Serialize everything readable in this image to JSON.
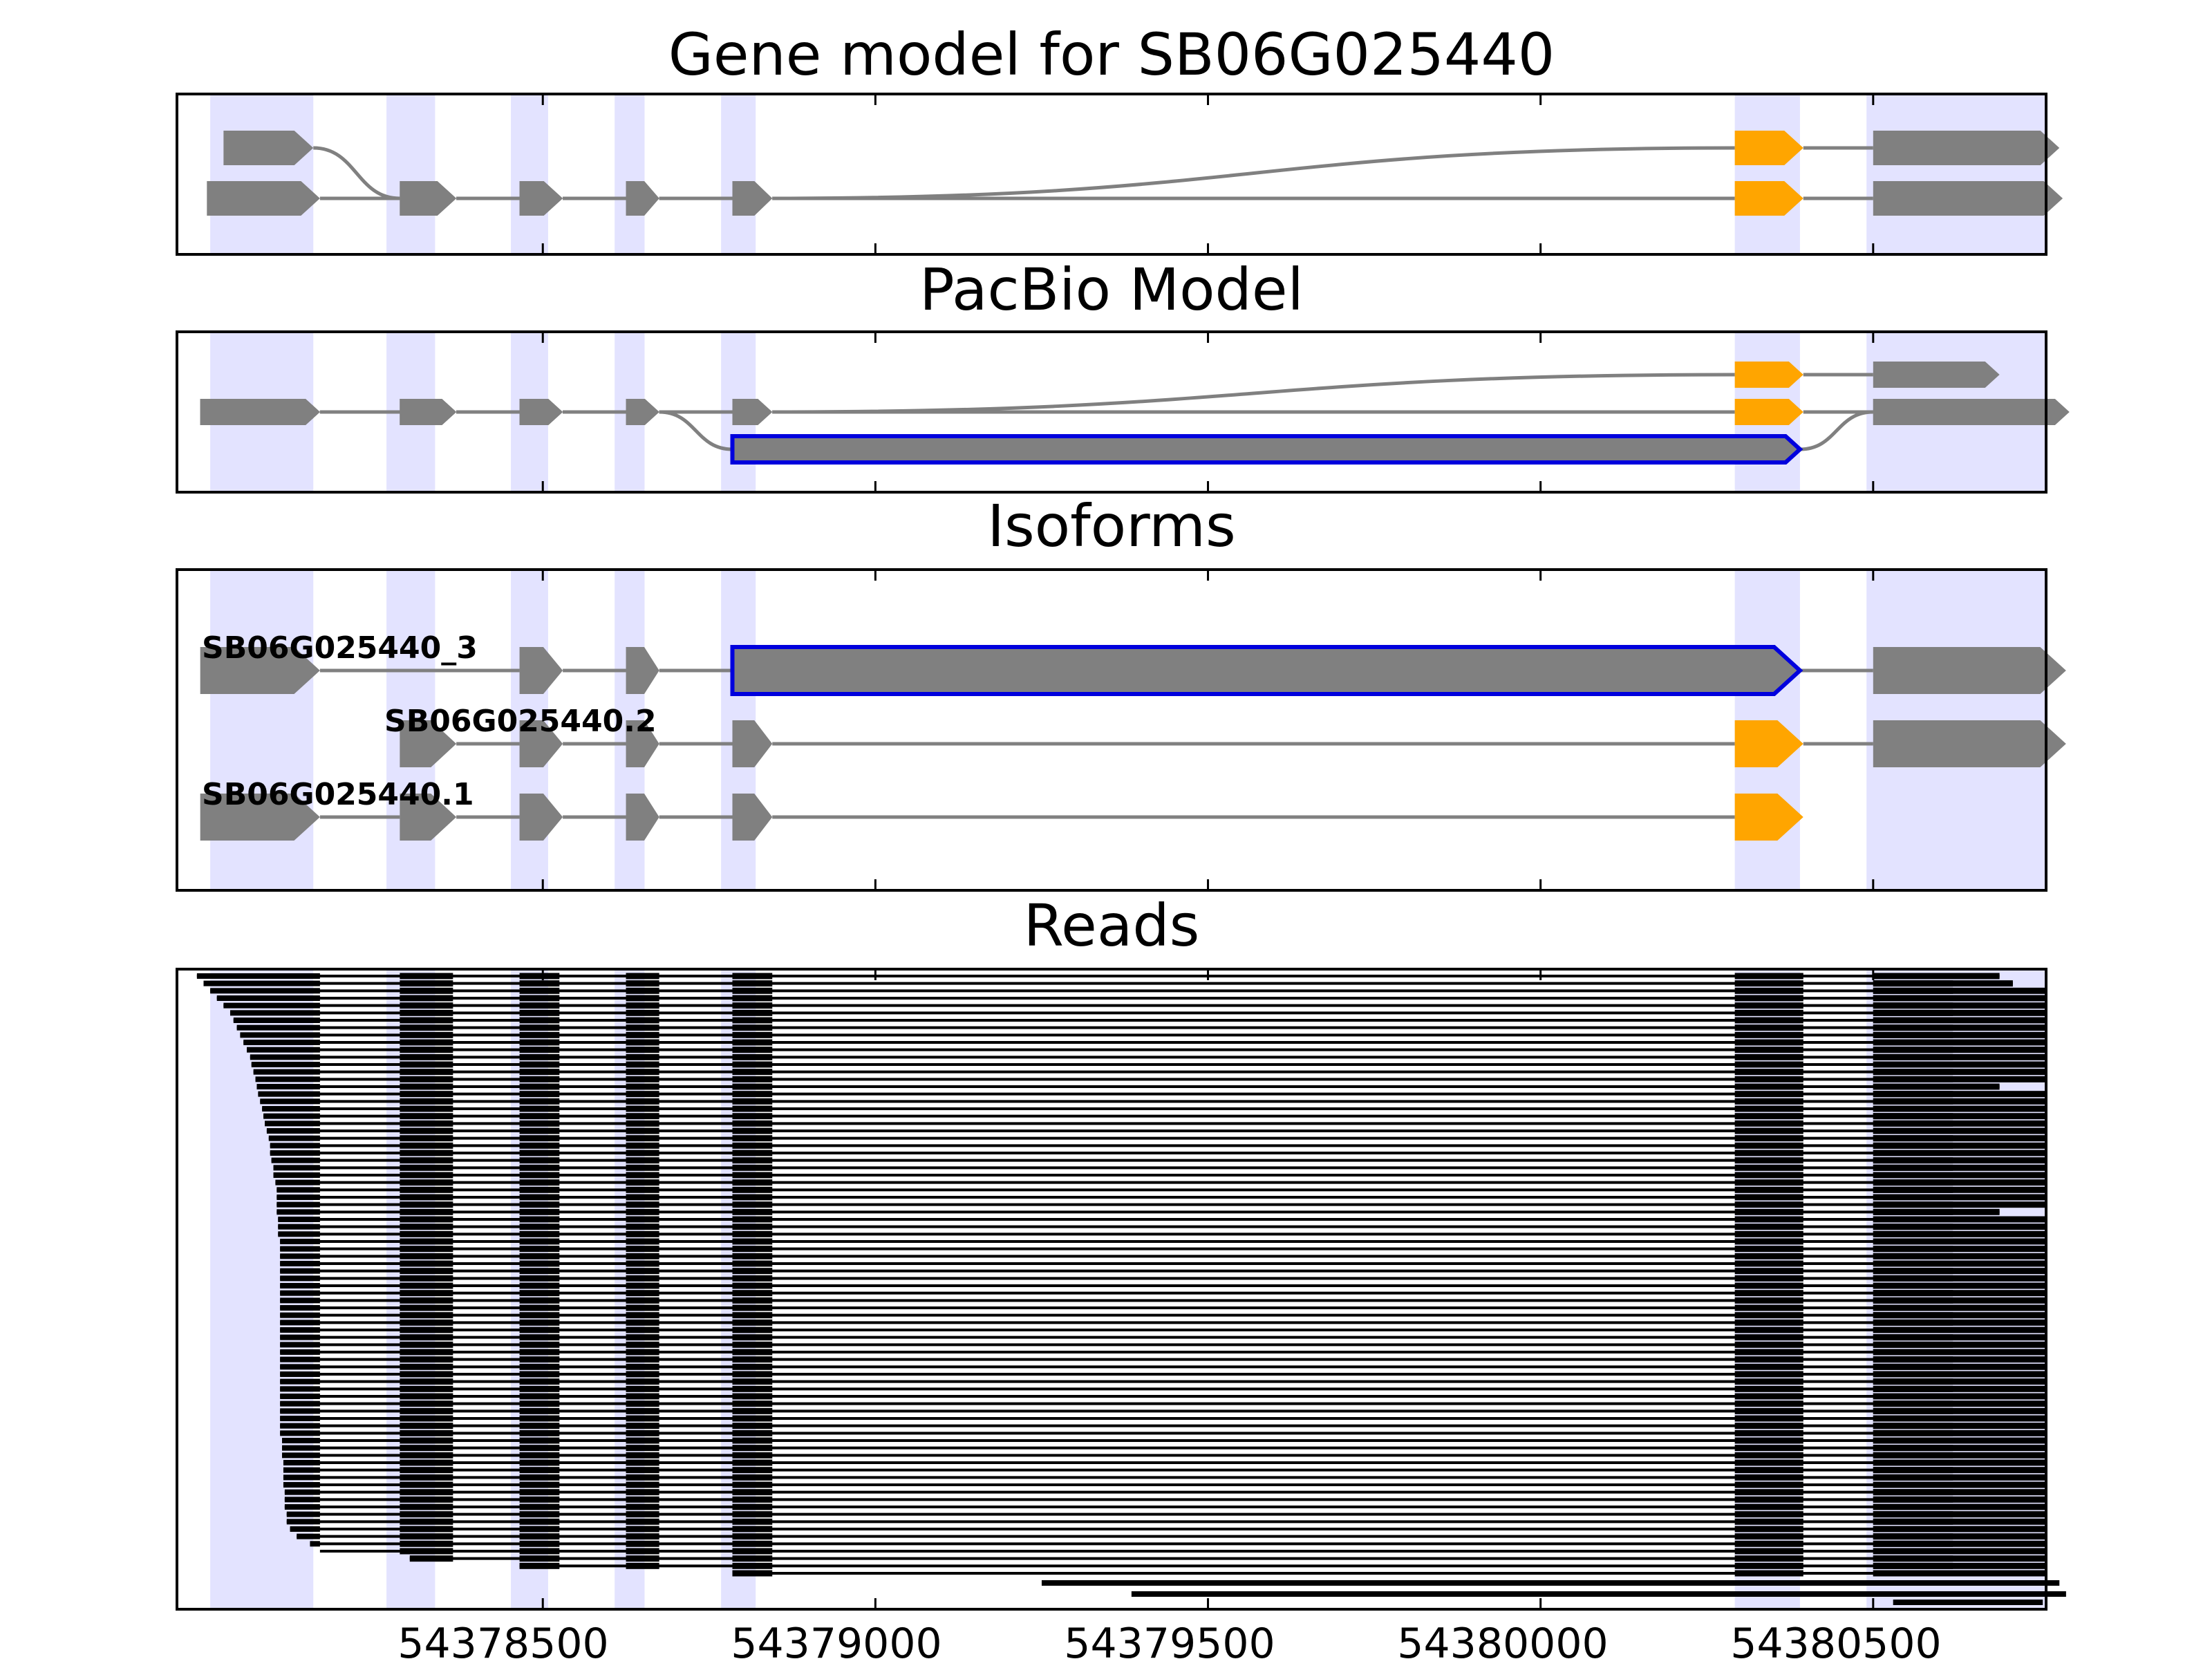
{
  "colors": {
    "exon": "#808080",
    "cds": "#ffa500",
    "novel_outline": "#0000dd",
    "intron": "#808080",
    "highlight": "#e3e3ff",
    "read": "#000000"
  },
  "chart_data": {
    "type": "gene_track",
    "xlim": [
      54377950,
      54380760
    ],
    "x_ticks": [
      54378500,
      54379000,
      54379500,
      54380000,
      54380500
    ],
    "x_tick_labels": [
      "54378500",
      "54379000",
      "54379500",
      "54380000",
      "54380500"
    ],
    "highlight_regions": [
      [
        54378000,
        54378155
      ],
      [
        54378265,
        54378338
      ],
      [
        54378452,
        54378508
      ],
      [
        54378608,
        54378653
      ],
      [
        54378768,
        54378820
      ],
      [
        54380292,
        54380390
      ],
      [
        54380490,
        54380760
      ]
    ],
    "panels": [
      {
        "title": "Gene model for SB06G025440",
        "lanes": 2,
        "transcripts": [
          {
            "exons": [
              [
                54378020,
                54378155,
                0,
                "exon"
              ],
              [
                54378285,
                54378370,
                1,
                "exon"
              ],
              [
                54378465,
                54378530,
                1,
                "exon"
              ],
              [
                54378625,
                54378675,
                1,
                "exon"
              ],
              [
                54378785,
                54378845,
                1,
                "exon"
              ],
              [
                54380292,
                54380395,
                0,
                "cds"
              ],
              [
                54380500,
                54380780,
                0,
                "exon"
              ]
            ]
          },
          {
            "exons": [
              [
                54377995,
                54378165,
                1,
                "exon"
              ],
              [
                54378285,
                54378370,
                1,
                "exon"
              ],
              [
                54378465,
                54378530,
                1,
                "exon"
              ],
              [
                54378625,
                54378675,
                1,
                "exon"
              ],
              [
                54378785,
                54378845,
                1,
                "exon"
              ],
              [
                54380292,
                54380395,
                1,
                "cds"
              ],
              [
                54380500,
                54380785,
                1,
                "exon"
              ]
            ]
          }
        ]
      },
      {
        "title": "PacBio Model",
        "lanes": 3,
        "transcripts": [
          {
            "exons": [
              [
                54377985,
                54378165,
                1,
                "exon"
              ],
              [
                54378285,
                54378370,
                1,
                "exon"
              ],
              [
                54378465,
                54378530,
                1,
                "exon"
              ],
              [
                54378625,
                54378675,
                1,
                "exon"
              ],
              [
                54378785,
                54378845,
                1,
                "exon"
              ],
              [
                54380292,
                54380395,
                0,
                "cds"
              ],
              [
                54380500,
                54380690,
                0,
                "exon"
              ]
            ]
          },
          {
            "exons": [
              [
                54377985,
                54378165,
                1,
                "exon"
              ],
              [
                54378285,
                54378370,
                1,
                "exon"
              ],
              [
                54378465,
                54378530,
                1,
                "exon"
              ],
              [
                54378625,
                54378675,
                1,
                "exon"
              ],
              [
                54378785,
                54378845,
                1,
                "exon"
              ],
              [
                54380292,
                54380395,
                1,
                "cds"
              ],
              [
                54380500,
                54380795,
                1,
                "exon"
              ]
            ]
          },
          {
            "exons": [
              [
                54377985,
                54378165,
                1,
                "exon"
              ],
              [
                54378285,
                54378370,
                1,
                "exon"
              ],
              [
                54378465,
                54378530,
                1,
                "exon"
              ],
              [
                54378625,
                54378675,
                1,
                "exon"
              ],
              [
                54378785,
                54380390,
                2,
                "novel"
              ],
              [
                54380500,
                54380795,
                1,
                "exon"
              ]
            ]
          }
        ]
      },
      {
        "title": "Isoforms",
        "lanes": 3,
        "transcripts": [
          {
            "label": "SB06G025440_3",
            "lane": 0,
            "exons": [
              [
                54377985,
                54378165,
                0,
                "exon"
              ],
              [
                54378465,
                54378530,
                0,
                "exon"
              ],
              [
                54378625,
                54378675,
                0,
                "exon"
              ],
              [
                54378785,
                54380390,
                0,
                "novel"
              ],
              [
                54380500,
                54380790,
                0,
                "exon"
              ]
            ]
          },
          {
            "label": "SB06G025440.2",
            "lane": 1,
            "exons": [
              [
                54378285,
                54378370,
                1,
                "exon"
              ],
              [
                54378465,
                54378530,
                1,
                "exon"
              ],
              [
                54378625,
                54378675,
                1,
                "exon"
              ],
              [
                54378785,
                54378845,
                1,
                "exon"
              ],
              [
                54380292,
                54380395,
                1,
                "cds"
              ],
              [
                54380500,
                54380790,
                1,
                "exon"
              ]
            ]
          },
          {
            "label": "SB06G025440.1",
            "lane": 2,
            "exons": [
              [
                54377985,
                54378165,
                2,
                "exon"
              ],
              [
                54378285,
                54378370,
                2,
                "exon"
              ],
              [
                54378465,
                54378530,
                2,
                "exon"
              ],
              [
                54378625,
                54378675,
                2,
                "exon"
              ],
              [
                54378785,
                54378845,
                2,
                "exon"
              ],
              [
                54380292,
                54380395,
                2,
                "cds"
              ]
            ]
          }
        ]
      },
      {
        "title": "Reads",
        "read_blocks": [
          [
            54378285,
            54378365
          ],
          [
            54378465,
            54378525
          ],
          [
            54378625,
            54378675
          ],
          [
            54378785,
            54378845
          ],
          [
            54380292,
            54380395
          ],
          [
            54380500,
            54380620
          ]
        ],
        "read_count": 82,
        "read_starts": [
          54377980,
          54377990,
          54378000,
          54378010,
          54378020,
          54378030,
          54378035,
          54378040,
          54378045,
          54378050,
          54378055,
          54378060,
          54378062,
          54378065,
          54378068,
          54378070,
          54378072,
          54378075,
          54378078,
          54378080,
          54378082,
          54378085,
          54378088,
          54378090,
          54378090,
          54378092,
          54378095,
          54378095,
          54378098,
          54378100,
          54378100,
          54378100,
          54378100,
          54378102,
          54378102,
          54378102,
          54378105,
          54378105,
          54378105,
          54378105,
          54378105,
          54378105,
          54378105,
          54378105,
          54378105,
          54378105,
          54378105,
          54378105,
          54378105,
          54378105,
          54378105,
          54378105,
          54378105,
          54378105,
          54378105,
          54378105,
          54378105,
          54378105,
          54378105,
          54378105,
          54378105,
          54378105,
          54378105,
          54378108,
          54378108,
          54378108,
          54378110,
          54378110,
          54378110,
          54378110,
          54378112,
          54378112,
          54378112,
          54378115,
          54378115,
          54378120,
          54378130,
          54378150,
          54378165,
          54378300,
          54378465,
          54378785
        ],
        "read_ends": [
          54380690,
          54380710,
          54380770,
          54380775,
          54380780,
          54380780,
          54380790,
          54380790,
          54380790,
          54380790,
          54380785,
          54380780,
          54380790,
          54380780,
          54380780,
          54380690,
          54380770,
          54380780,
          54380830,
          54380770,
          54380780,
          54380780,
          54380830,
          54380780,
          54380780,
          54380780,
          54380830,
          54380780,
          54380780,
          54380770,
          54380780,
          54380760,
          54380690,
          54380770,
          54380760,
          54380770,
          54380780,
          54380780,
          54380790,
          54380790,
          54380790,
          54380780,
          54380790,
          54380790,
          54380790,
          54380790,
          54380790,
          54380790,
          54380790,
          54380780,
          54380780,
          54380780,
          54380830,
          54380780,
          54380780,
          54380780,
          54380780,
          54380780,
          54380780,
          54380780,
          54380780,
          54380780,
          54380780,
          54380780,
          54380790,
          54380790,
          54380790,
          54380790,
          54380790,
          54380790,
          54380790,
          54380790,
          54380790,
          54380780,
          54380780,
          54380780,
          54380780,
          54380780,
          54380790,
          54380790,
          54380780,
          54380830
        ],
        "late_reads": [
          [
            54379250,
            54380780
          ],
          [
            54379385,
            54380790
          ]
        ]
      }
    ]
  }
}
